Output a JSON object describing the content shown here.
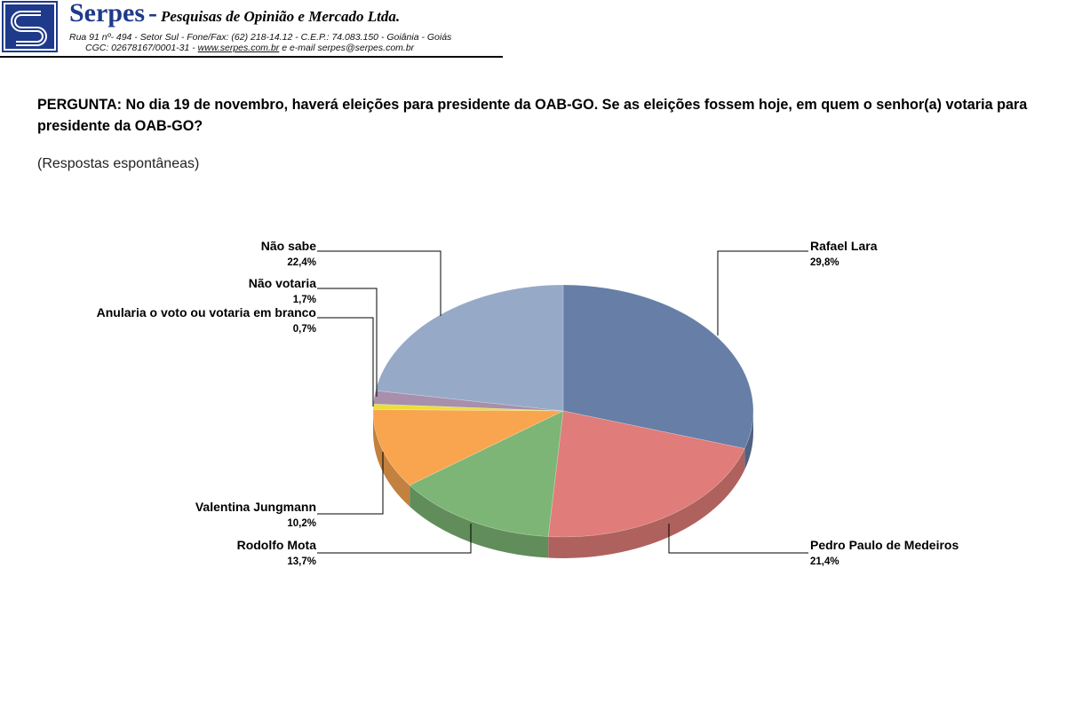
{
  "header": {
    "company": "Serpes",
    "dash": "-",
    "company_desc": "Pesquisas de Opinião e Mercado Ltda.",
    "address_line": "Rua 91 nº- 494 - Setor Sul - Fone/Fax: (62) 218-14.12 - C.E.P.: 74.083.150 - Goiânia - Goiás",
    "cgc_prefix": "CGC: 02678167/0001-31 - ",
    "website": "www.serpes.com.br",
    "email_text": " e e-mail serpes@serpes.com.br"
  },
  "question": "PERGUNTA: No dia 19 de novembro, haverá eleições para presidente da OAB-GO. Se as eleições fossem hoje, em quem o senhor(a) votaria para presidente da OAB-GO?",
  "subtitle": "(Respostas espontâneas)",
  "colors": {
    "rafael": "#677ea6",
    "pedro": "#e07c79",
    "rodolfo": "#7cb575",
    "valentina": "#f9a54f",
    "anularia": "#eadf3a",
    "naovotaria": "#a88fac",
    "naosabe": "#96aac7",
    "brand": "#1f3a8a"
  },
  "chart_data": {
    "type": "pie",
    "title": "",
    "slices": [
      {
        "label": "Rafael Lara",
        "value": 29.8,
        "value_label": "29,8%",
        "color_key": "rafael"
      },
      {
        "label": "Pedro Paulo de Medeiros",
        "value": 21.4,
        "value_label": "21,4%",
        "color_key": "pedro"
      },
      {
        "label": "Rodolfo Mota",
        "value": 13.7,
        "value_label": "13,7%",
        "color_key": "rodolfo"
      },
      {
        "label": "Valentina Jungmann",
        "value": 10.2,
        "value_label": "10,2%",
        "color_key": "valentina"
      },
      {
        "label": "Anularia o voto ou votaria em branco",
        "value": 0.7,
        "value_label": "0,7%",
        "color_key": "anularia"
      },
      {
        "label": "Não votaria",
        "value": 1.7,
        "value_label": "1,7%",
        "color_key": "naovotaria"
      },
      {
        "label": "Não sabe",
        "value": 22.4,
        "value_label": "22,4%",
        "color_key": "naosabe"
      }
    ]
  }
}
